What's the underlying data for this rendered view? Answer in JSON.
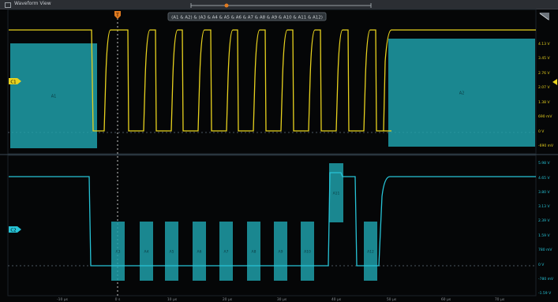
{
  "window": {
    "title": "Waveform View"
  },
  "trigger_marker": {
    "label": "T"
  },
  "search_expression": "(A1 & A2) & (A3 & A4 & A5 & A6 & A7 & A8 & A9 & A10 & A11 & A12)",
  "colors": {
    "ch1": "#e8d21e",
    "ch2": "#27c3d6",
    "box": "#1e9fa8",
    "bg": "#050607",
    "grid": "#2a3b45"
  },
  "channels": [
    {
      "name": "C1",
      "color": "#e8d21e"
    },
    {
      "name": "C2",
      "color": "#27c3d6"
    }
  ],
  "ch1_scale": [
    "4.13 V",
    "3.45 V",
    "2.76 V",
    "2.07 V",
    "1.38 V",
    "690 mV",
    "0 V",
    "-690 mV"
  ],
  "ch2_scale": [
    "5.98 V",
    "4.65 V",
    "3.80 V",
    "3.13 V",
    "2.39 V",
    "1.59 V",
    "780 mV",
    "0 V",
    "-780 mV",
    "-1.59 V"
  ],
  "x_ticks": [
    "-10 µs",
    "0 s",
    "10 µs",
    "20 µs",
    "30 µs",
    "40 µs",
    "50 µs",
    "60 µs",
    "70 µs"
  ],
  "ch1_boxes": [
    {
      "label": "A1"
    },
    {
      "label": "A2"
    }
  ],
  "ch2_boxes": [
    {
      "label": "A3"
    },
    {
      "label": "A4"
    },
    {
      "label": "A5"
    },
    {
      "label": "A6"
    },
    {
      "label": "A7"
    },
    {
      "label": "A8"
    },
    {
      "label": "A9"
    },
    {
      "label": "A10"
    },
    {
      "label": "A11"
    },
    {
      "label": "A12"
    }
  ]
}
